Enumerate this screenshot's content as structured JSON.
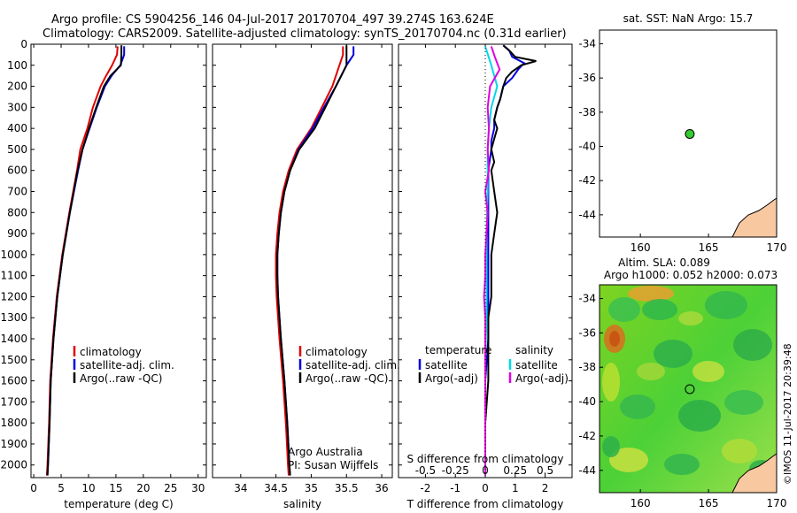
{
  "title": {
    "line1": "Argo profile: CS 5904256_146 04-Jul-2017 20170704_497 39.274S 163.624E",
    "line2": "Climatology: CARS2009. Satellite-adjusted climatology: synTS_20170704.nc (0.31d earlier)"
  },
  "credit": "©IMOS 11-Jul-2017 20:39:48",
  "colors": {
    "climatology": "#e00000",
    "satellite": "#0000e0",
    "argo": "#000000",
    "salinity_sat": "#00d8e8",
    "salinity_argo": "#e000e0",
    "land": "#f8c8a0",
    "float": "#33cc33"
  },
  "chart_data": [
    {
      "id": "temperature",
      "type": "line",
      "xlabel": "temperature (deg C)",
      "ylabel": "",
      "xlim": [
        -0.5,
        31.5
      ],
      "ylim": [
        2060,
        0
      ],
      "xticks": [
        "0",
        "5",
        "10",
        "15",
        "20",
        "25",
        "30"
      ],
      "yticks": [
        "0",
        "100",
        "200",
        "300",
        "400",
        "500",
        "600",
        "700",
        "800",
        "900",
        "1000",
        "1100",
        "1200",
        "1300",
        "1400",
        "1500",
        "1600",
        "1700",
        "1800",
        "1900",
        "2000"
      ],
      "legend": [
        "climatology",
        "satellite-adj. clim.",
        "Argo(..raw -QC)"
      ],
      "series": [
        {
          "name": "climatology",
          "depth": [
            10,
            50,
            100,
            150,
            200,
            300,
            400,
            500,
            600,
            800,
            1000,
            1200,
            1400,
            1600,
            1800,
            2000,
            2050
          ],
          "values": [
            15.3,
            15.2,
            14.3,
            13.2,
            12.2,
            10.8,
            9.8,
            8.5,
            7.9,
            6.5,
            5.2,
            4.2,
            3.5,
            3.0,
            2.8,
            2.5,
            2.4
          ]
        },
        {
          "name": "satellite-adj. clim.",
          "depth": [
            10,
            50,
            100,
            150,
            200,
            300,
            400,
            500,
            600,
            800,
            1000,
            1200,
            1400,
            1600,
            1800,
            2000,
            2050
          ],
          "values": [
            16.5,
            16.5,
            15.8,
            14.2,
            13.0,
            11.5,
            10.2,
            8.9,
            8.1,
            6.6,
            5.3,
            4.3,
            3.6,
            3.1,
            2.9,
            2.6,
            2.5
          ]
        },
        {
          "name": "Argo(..raw -QC)",
          "depth": [
            5,
            50,
            100,
            150,
            200,
            300,
            400,
            500,
            600,
            800,
            1000,
            1200,
            1400,
            1600,
            1800,
            2000,
            2050
          ],
          "values": [
            16.0,
            16.0,
            15.9,
            14.0,
            12.8,
            11.4,
            10.1,
            8.9,
            8.0,
            6.6,
            5.3,
            4.3,
            3.6,
            3.1,
            2.9,
            2.6,
            2.5
          ]
        }
      ]
    },
    {
      "id": "salinity",
      "type": "line",
      "xlabel": "salinity",
      "xlim": [
        33.6,
        36.15
      ],
      "ylim": [
        2060,
        0
      ],
      "xticks": [
        "34",
        "34.5",
        "35",
        "35.5",
        "36"
      ],
      "legend": [
        "climatology",
        "satellite-adj. clim.",
        "Argo(..raw -QC)"
      ],
      "annotation": [
        "Argo Australia",
        "PI: Susan Wijffels"
      ],
      "series": [
        {
          "name": "climatology",
          "depth": [
            10,
            50,
            100,
            200,
            300,
            400,
            500,
            600,
            700,
            800,
            900,
            1000,
            1100,
            1200,
            1300,
            1400,
            1600,
            1800,
            2000,
            2050
          ],
          "values": [
            35.45,
            35.45,
            35.4,
            35.3,
            35.15,
            35.0,
            34.8,
            34.68,
            34.6,
            34.55,
            34.52,
            34.5,
            34.5,
            34.51,
            34.53,
            34.55,
            34.6,
            34.64,
            34.67,
            34.68
          ]
        },
        {
          "name": "satellite-adj. clim.",
          "depth": [
            10,
            50,
            100,
            200,
            300,
            400,
            500,
            600,
            700,
            800,
            900,
            1000,
            1100,
            1200,
            1300,
            1400,
            1600,
            1800,
            2000,
            2050
          ],
          "values": [
            35.6,
            35.6,
            35.5,
            35.35,
            35.18,
            35.02,
            34.82,
            34.7,
            34.62,
            34.57,
            34.54,
            34.52,
            34.52,
            34.53,
            34.55,
            34.57,
            34.62,
            34.66,
            34.69,
            34.7
          ]
        },
        {
          "name": "Argo(..raw -QC)",
          "depth": [
            5,
            50,
            100,
            200,
            300,
            400,
            500,
            600,
            700,
            800,
            900,
            1000,
            1100,
            1200,
            1300,
            1400,
            1600,
            1800,
            2000,
            2050
          ],
          "values": [
            35.5,
            35.5,
            35.5,
            35.35,
            35.2,
            35.05,
            34.83,
            34.7,
            34.62,
            34.57,
            34.54,
            34.52,
            34.52,
            34.53,
            34.55,
            34.57,
            34.62,
            34.66,
            34.69,
            34.7
          ]
        }
      ]
    },
    {
      "id": "difference",
      "type": "line",
      "xlabel": "T difference from climatology",
      "toplabel": "S difference from climatology",
      "xlim": [
        -2.9,
        2.9
      ],
      "ylim": [
        2060,
        0
      ],
      "xticks": [
        "-2",
        "-1",
        "0",
        "1",
        "2"
      ],
      "sticks": [
        "-0.5",
        "-0.25",
        "0",
        "0.25",
        "0.5"
      ],
      "legend": {
        "temperature_header": "temperature",
        "salinity_header": "salinity",
        "temperature_items": [
          "satellite",
          "Argo(-adj)"
        ],
        "salinity_items": [
          "satellite",
          "Argo(-adj)"
        ]
      },
      "series": [
        {
          "name": "temperature satellite",
          "depth": [
            5,
            30,
            60,
            90,
            120,
            160,
            200,
            260,
            300,
            360,
            400,
            460,
            500,
            600,
            700,
            800,
            900,
            1000,
            1100,
            1200,
            1300,
            1400,
            1600,
            1800,
            2000,
            2050
          ],
          "values": [
            0.6,
            0.8,
            0.9,
            1.3,
            1.1,
            0.9,
            0.6,
            0.5,
            0.4,
            0.3,
            0.3,
            0.2,
            0.2,
            0.1,
            0.1,
            0.1,
            0.1,
            0.1,
            0.1,
            0.1,
            0.1,
            0.1,
            0.0,
            0.0,
            0.0,
            0.0
          ]
        },
        {
          "name": "temperature Argo(-adj)",
          "depth": [
            5,
            30,
            60,
            80,
            100,
            130,
            160,
            200,
            260,
            300,
            360,
            400,
            450,
            500,
            560,
            600,
            700,
            800,
            900,
            1000,
            1100,
            1200,
            1300,
            1400,
            1600,
            1800,
            2000,
            2050
          ],
          "values": [
            0.6,
            0.8,
            1.0,
            1.7,
            1.2,
            0.9,
            0.7,
            0.6,
            0.5,
            0.4,
            0.3,
            0.4,
            0.3,
            0.2,
            0.3,
            0.2,
            0.3,
            0.4,
            0.3,
            0.2,
            0.2,
            0.2,
            0.1,
            0.1,
            0.1,
            0.0,
            0.0,
            0.0
          ]
        },
        {
          "name": "salinity satellite",
          "depth": [
            10,
            100,
            200,
            300,
            400,
            500,
            700,
            900,
            1100,
            1300,
            1500,
            1700,
            1900,
            2050
          ],
          "values": [
            0.0,
            0.05,
            0.1,
            0.05,
            0.03,
            0.02,
            0.02,
            0.01,
            0.01,
            0.01,
            0.0,
            0.0,
            0.0,
            0.0
          ]
        },
        {
          "name": "salinity Argo(-adj)",
          "depth": [
            10,
            60,
            120,
            200,
            300,
            400,
            500,
            600,
            700,
            800,
            900,
            1000,
            1100,
            1200,
            1300,
            1400,
            1600,
            1800,
            2050
          ],
          "values": [
            0.05,
            0.08,
            0.12,
            0.04,
            0.02,
            0.03,
            0.02,
            0.03,
            0.0,
            0.02,
            0.01,
            0.0,
            0.0,
            -0.01,
            0.0,
            0.0,
            0.0,
            0.0,
            0.0
          ]
        }
      ]
    },
    {
      "id": "sst-map",
      "type": "scatter",
      "title": "sat. SST: NaN Argo: 15.7",
      "xlim": [
        157,
        170
      ],
      "ylim": [
        -45.3,
        -33.2
      ],
      "xticks": [
        "160",
        "165",
        "170"
      ],
      "yticks": [
        "-34",
        "-36",
        "-38",
        "-40",
        "-42",
        "-44"
      ],
      "point": {
        "lon": 163.624,
        "lat": -39.274
      }
    },
    {
      "id": "sla-map",
      "type": "heatmap",
      "title": "Altim. SLA: 0.089",
      "subtitle": "Argo h1000: 0.052 h2000: 0.073",
      "xlim": [
        157,
        170
      ],
      "ylim": [
        -45.3,
        -33.2
      ],
      "xticks": [
        "160",
        "165",
        "170"
      ],
      "yticks": [
        "-34",
        "-36",
        "-38",
        "-40",
        "-42",
        "-44"
      ],
      "point": {
        "lon": 163.624,
        "lat": -39.274
      }
    }
  ]
}
